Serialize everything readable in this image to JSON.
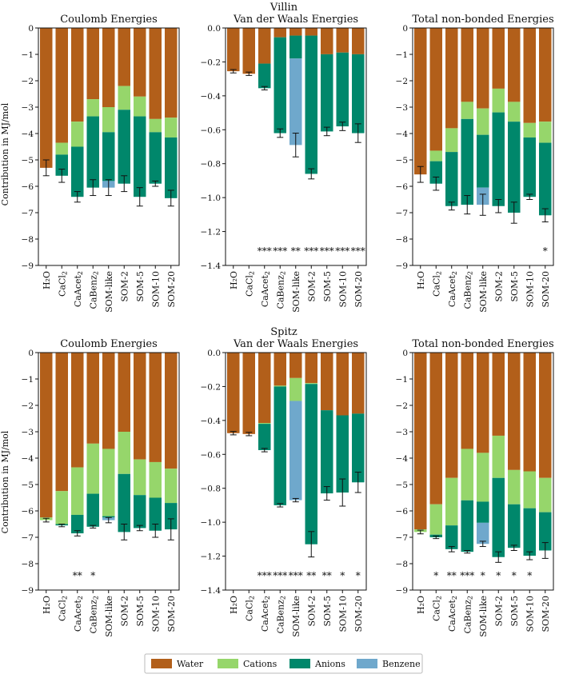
{
  "colors": {
    "water": "#B25F1A",
    "cations": "#96D66B",
    "anions": "#00876B",
    "benzene": "#6FA8CC"
  },
  "categories": [
    "H₂O",
    "CaCl₂",
    "CaAcet₂",
    "CaBenz₂",
    "SOM-like",
    "SOM-2",
    "SOM-5",
    "SOM-10",
    "SOM-20"
  ],
  "ylabel": "Contribution in MJ/mol",
  "legend": [
    {
      "key": "water",
      "label": "Water"
    },
    {
      "key": "cations",
      "label": "Cations"
    },
    {
      "key": "anions",
      "label": "Anions"
    },
    {
      "key": "benzene",
      "label": "Benzene"
    }
  ],
  "row_titles": [
    "Villin",
    "Spitz"
  ],
  "chart_data": [
    {
      "type": "bar",
      "stacked": true,
      "row": 0,
      "col": 0,
      "title": "Coulomb Energies",
      "ylim": [
        -9,
        0
      ],
      "yticks": [
        0,
        -1,
        -2,
        -3,
        -4,
        -5,
        -6,
        -7,
        -8,
        -9
      ],
      "series": [
        {
          "name": "Water",
          "key": "water",
          "values": [
            -5.3,
            -4.35,
            -3.55,
            -2.7,
            -3.0,
            -2.2,
            -2.6,
            -3.45,
            -3.4
          ]
        },
        {
          "name": "Cations",
          "key": "cations",
          "values": [
            0,
            -0.45,
            -0.95,
            -0.65,
            -0.95,
            -0.9,
            -0.75,
            -0.5,
            -0.75
          ]
        },
        {
          "name": "Anions",
          "key": "anions",
          "values": [
            0,
            -0.8,
            -1.9,
            -2.7,
            -1.85,
            -2.8,
            -3.05,
            -1.95,
            -2.3
          ]
        },
        {
          "name": "Benzene",
          "key": "benzene",
          "values": [
            0,
            0,
            0,
            0,
            -0.25,
            0,
            0,
            0,
            0
          ]
        }
      ],
      "totals": [
        -5.3,
        -5.6,
        -6.4,
        -6.05,
        -6.05,
        -5.9,
        -6.4,
        -5.9,
        -6.45
      ],
      "errors": [
        0.3,
        0.25,
        0.2,
        0.3,
        0.3,
        0.3,
        0.35,
        0.1,
        0.3
      ],
      "sig": [
        "",
        "",
        "",
        "",
        "",
        "",
        "",
        "",
        ""
      ]
    },
    {
      "type": "bar",
      "stacked": true,
      "row": 0,
      "col": 1,
      "title": "Van der Waals Energies",
      "ylim": [
        -1.4,
        0
      ],
      "yticks": [
        0,
        -0.2,
        -0.4,
        -0.6,
        -0.8,
        -1.0,
        -1.2,
        -1.4
      ],
      "series": [
        {
          "name": "Water",
          "key": "water",
          "values": [
            -0.255,
            -0.27,
            -0.21,
            -0.055,
            -0.045,
            -0.045,
            -0.155,
            -0.145,
            -0.155
          ]
        },
        {
          "name": "Cations",
          "key": "cations",
          "values": [
            0,
            0,
            0,
            0,
            0,
            0,
            0,
            0,
            0
          ]
        },
        {
          "name": "Anions",
          "key": "anions",
          "values": [
            0,
            0,
            -0.145,
            -0.565,
            -0.135,
            -0.815,
            -0.455,
            -0.435,
            -0.465
          ]
        },
        {
          "name": "Benzene",
          "key": "benzene",
          "values": [
            0,
            0,
            0,
            0,
            -0.51,
            0,
            0,
            0,
            0
          ]
        }
      ],
      "totals": [
        -0.255,
        -0.27,
        -0.355,
        -0.62,
        -0.69,
        -0.86,
        -0.61,
        -0.58,
        -0.62
      ],
      "errors": [
        0.01,
        0.01,
        0.01,
        0.025,
        0.07,
        0.03,
        0.025,
        0.025,
        0.055
      ],
      "sig": [
        "",
        "",
        "***",
        "***",
        "**",
        "***",
        "***",
        "***",
        "***"
      ]
    },
    {
      "type": "bar",
      "stacked": true,
      "row": 0,
      "col": 2,
      "title": "Total non-bonded Energies",
      "ylim": [
        -9,
        0
      ],
      "yticks": [
        0,
        -1,
        -2,
        -3,
        -4,
        -5,
        -6,
        -7,
        -8,
        -9
      ],
      "series": [
        {
          "name": "Water",
          "key": "water",
          "values": [
            -5.55,
            -4.65,
            -3.8,
            -2.8,
            -3.05,
            -2.3,
            -2.8,
            -3.6,
            -3.55
          ]
        },
        {
          "name": "Cations",
          "key": "cations",
          "values": [
            0,
            -0.4,
            -0.9,
            -0.65,
            -1.0,
            -0.9,
            -0.75,
            -0.55,
            -0.8
          ]
        },
        {
          "name": "Anions",
          "key": "anions",
          "values": [
            0,
            -0.85,
            -2.05,
            -3.25,
            -2.0,
            -3.55,
            -3.45,
            -2.25,
            -2.75
          ]
        },
        {
          "name": "Benzene",
          "key": "benzene",
          "values": [
            0,
            0,
            0,
            0,
            -0.65,
            0,
            0,
            0,
            0
          ]
        }
      ],
      "totals": [
        -5.55,
        -5.9,
        -6.75,
        -6.7,
        -6.7,
        -6.75,
        -7.0,
        -6.4,
        -7.1
      ],
      "errors": [
        0.3,
        0.25,
        0.15,
        0.35,
        0.4,
        0.25,
        0.4,
        0.1,
        0.25
      ],
      "sig": [
        "",
        "",
        "",
        "",
        "",
        "",
        "",
        "",
        "*"
      ]
    },
    {
      "type": "bar",
      "stacked": true,
      "row": 1,
      "col": 0,
      "title": "Coulomb Energies",
      "ylim": [
        -9,
        0
      ],
      "yticks": [
        0,
        -1,
        -2,
        -3,
        -4,
        -5,
        -6,
        -7,
        -8,
        -9
      ],
      "series": [
        {
          "name": "Water",
          "key": "water",
          "values": [
            -6.25,
            -5.25,
            -4.35,
            -3.45,
            -3.65,
            -3.0,
            -4.05,
            -4.15,
            -4.4
          ]
        },
        {
          "name": "Cations",
          "key": "cations",
          "values": [
            -0.1,
            -1.25,
            -1.8,
            -1.9,
            -2.55,
            -1.6,
            -1.35,
            -1.35,
            -1.3
          ]
        },
        {
          "name": "Anions",
          "key": "anions",
          "values": [
            0,
            -0.05,
            -0.7,
            -1.25,
            -0.05,
            -2.2,
            -1.25,
            -1.25,
            -1.0
          ]
        },
        {
          "name": "Benzene",
          "key": "benzene",
          "values": [
            0,
            0,
            0,
            0,
            -0.1,
            0,
            0,
            0,
            0
          ]
        }
      ],
      "totals": [
        -6.35,
        -6.55,
        -6.85,
        -6.6,
        -6.35,
        -6.8,
        -6.65,
        -6.75,
        -6.7
      ],
      "errors": [
        0.07,
        0.05,
        0.1,
        0.05,
        0.1,
        0.3,
        0.1,
        0.25,
        0.4
      ],
      "sig": [
        "",
        "",
        "**",
        "*",
        "",
        "",
        "",
        "",
        ""
      ]
    },
    {
      "type": "bar",
      "stacked": true,
      "row": 1,
      "col": 1,
      "title": "Van der Waals Energies",
      "ylim": [
        -1.4,
        0
      ],
      "yticks": [
        0,
        -0.2,
        -0.4,
        -0.6,
        -0.8,
        -1.0,
        -1.2,
        -1.4
      ],
      "series": [
        {
          "name": "Water",
          "key": "water",
          "values": [
            -0.475,
            -0.48,
            -0.415,
            -0.195,
            -0.15,
            -0.18,
            -0.34,
            -0.37,
            -0.36
          ]
        },
        {
          "name": "Cations",
          "key": "cations",
          "values": [
            0,
            0,
            -0.005,
            -0.005,
            -0.135,
            -0.005,
            0,
            0,
            0
          ]
        },
        {
          "name": "Anions",
          "key": "anions",
          "values": [
            0,
            0,
            -0.155,
            -0.7,
            0,
            -0.945,
            -0.49,
            -0.455,
            -0.405
          ]
        },
        {
          "name": "Benzene",
          "key": "benzene",
          "values": [
            0,
            0,
            0,
            0,
            -0.585,
            0,
            0,
            0,
            0
          ]
        }
      ],
      "totals": [
        -0.475,
        -0.48,
        -0.575,
        -0.9,
        -0.87,
        -1.13,
        -0.83,
        -0.825,
        -0.765
      ],
      "errors": [
        0.01,
        0.01,
        0.01,
        0.01,
        0.01,
        0.075,
        0.04,
        0.08,
        0.06
      ],
      "sig": [
        "",
        "",
        "***",
        "***",
        "***",
        "**",
        "**",
        "*",
        "*"
      ]
    },
    {
      "type": "bar",
      "stacked": true,
      "row": 1,
      "col": 2,
      "title": "Total non-bonded Energies",
      "ylim": [
        -9,
        0
      ],
      "yticks": [
        0,
        -1,
        -2,
        -3,
        -4,
        -5,
        -6,
        -7,
        -8,
        -9
      ],
      "series": [
        {
          "name": "Water",
          "key": "water",
          "values": [
            -6.7,
            -5.75,
            -4.75,
            -3.65,
            -3.8,
            -3.15,
            -4.45,
            -4.5,
            -4.75
          ]
        },
        {
          "name": "Cations",
          "key": "cations",
          "values": [
            -0.1,
            -1.15,
            -1.8,
            -1.95,
            -1.85,
            -1.6,
            -1.3,
            -1.4,
            -1.3
          ]
        },
        {
          "name": "Anions",
          "key": "anions",
          "values": [
            0,
            -0.1,
            -0.9,
            -1.95,
            -0.8,
            -3.0,
            -1.65,
            -1.8,
            -1.45
          ]
        },
        {
          "name": "Benzene",
          "key": "benzene",
          "values": [
            0,
            0,
            0,
            0,
            -0.8,
            0,
            0,
            0,
            0
          ]
        }
      ],
      "totals": [
        -6.8,
        -7.0,
        -7.45,
        -7.55,
        -7.25,
        -7.75,
        -7.4,
        -7.7,
        -7.5
      ],
      "errors": [
        0.07,
        0.05,
        0.1,
        0.05,
        0.1,
        0.2,
        0.1,
        0.15,
        0.3
      ],
      "sig": [
        "",
        "*",
        "**",
        "***",
        "*",
        "*",
        "*",
        "*",
        ""
      ]
    }
  ]
}
